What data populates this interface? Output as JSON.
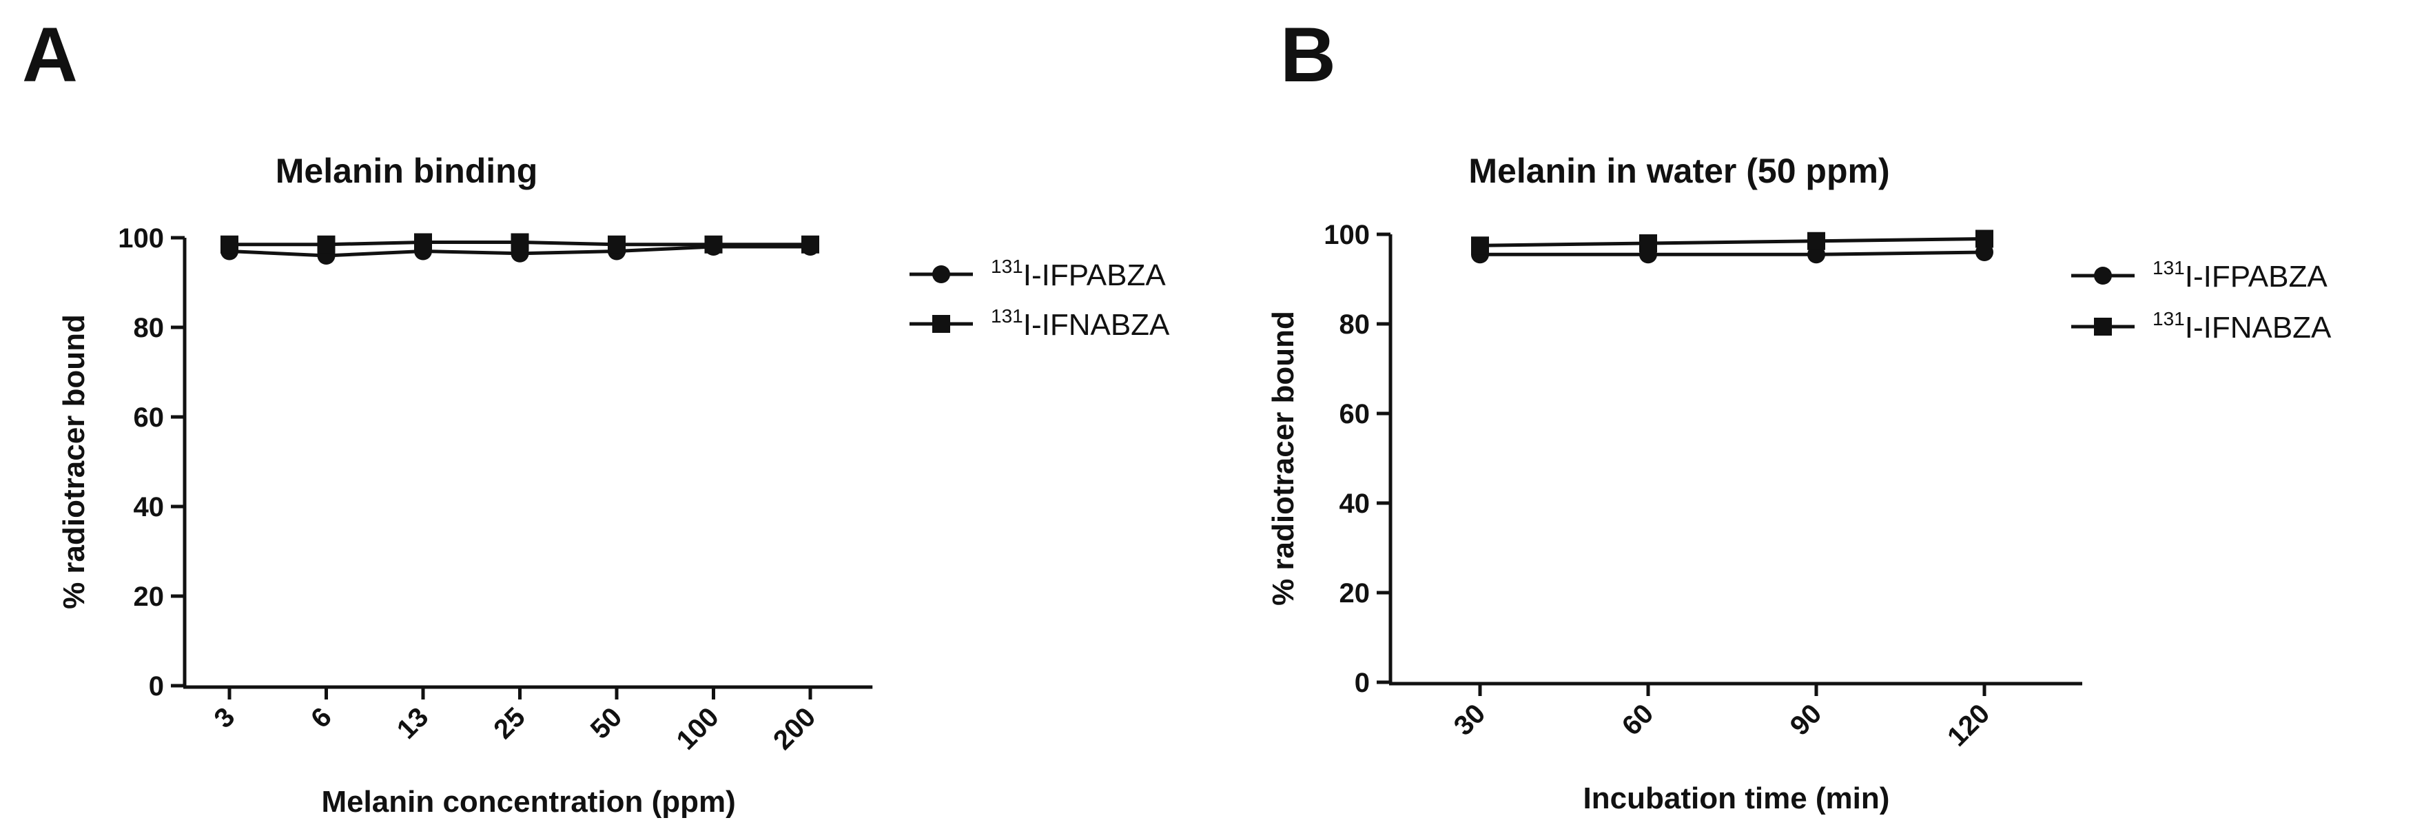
{
  "figure": {
    "colors": {
      "line": "#111111",
      "background": "#ffffff"
    }
  },
  "chart_data": [
    {
      "panel_label": "A",
      "type": "line",
      "title": "Melanin binding",
      "xlabel": "Melanin concentration (ppm)",
      "ylabel": "% radiotracer bound",
      "categories": [
        "3",
        "6",
        "13",
        "25",
        "50",
        "100",
        "200"
      ],
      "ylim": [
        0,
        100
      ],
      "yticks": [
        "0",
        "20",
        "40",
        "60",
        "80",
        "100"
      ],
      "grid": false,
      "legend_position": "right",
      "series": [
        {
          "name": "IFPABZA",
          "isotope": "131",
          "isotope_suffix": "I-",
          "marker": "circle",
          "values": [
            97,
            96,
            97,
            96.5,
            97,
            98,
            98
          ]
        },
        {
          "name": "IFNABZA",
          "isotope": "131",
          "isotope_suffix": "I-",
          "marker": "square",
          "values": [
            98.5,
            98.5,
            99,
            99,
            98.5,
            98.5,
            98.5
          ]
        }
      ]
    },
    {
      "panel_label": "B",
      "type": "line",
      "title": "Melanin in water (50 ppm)",
      "xlabel": "Incubation time (min)",
      "ylabel": "% radiotracer bound",
      "categories": [
        "30",
        "60",
        "90",
        "120"
      ],
      "ylim": [
        0,
        100
      ],
      "yticks": [
        "0",
        "20",
        "40",
        "60",
        "80",
        "100"
      ],
      "grid": false,
      "legend_position": "right",
      "series": [
        {
          "name": "IFPABZA",
          "isotope": "131",
          "isotope_suffix": "I-",
          "marker": "circle",
          "values": [
            95.5,
            95.5,
            95.5,
            96
          ]
        },
        {
          "name": "IFNABZA",
          "isotope": "131",
          "isotope_suffix": "I-",
          "marker": "square",
          "values": [
            97.5,
            98,
            98.5,
            99
          ]
        }
      ]
    }
  ]
}
